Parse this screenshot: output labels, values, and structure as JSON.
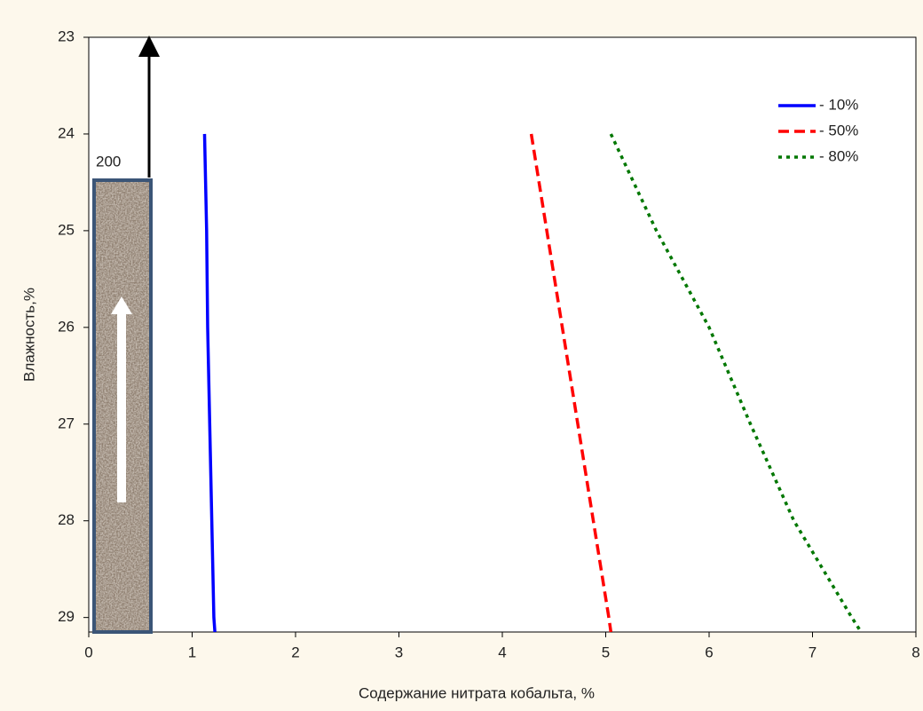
{
  "chart_data": {
    "type": "line",
    "x_label": "Содержание нитрата кобальта, %",
    "y_label": "Влажность,%",
    "annotation": "200",
    "xlim": [
      0,
      8
    ],
    "xticks": [
      0,
      1,
      2,
      3,
      4,
      5,
      6,
      7,
      8
    ],
    "ylim": [
      23,
      29.15
    ],
    "yticks": [
      23,
      24,
      25,
      26,
      27,
      28,
      29
    ],
    "y_inverted": true,
    "legend": "upper right",
    "series": [
      {
        "name": "- 10%",
        "color": "#0000ff",
        "dash": "solid",
        "x": [
          1.12,
          1.14,
          1.15,
          1.17,
          1.19,
          1.21,
          1.22
        ],
        "y": [
          24,
          25,
          26,
          27,
          28,
          29,
          29.15
        ]
      },
      {
        "name": "- 50%",
        "color": "#ff0000",
        "dash": "dashed",
        "x": [
          4.28,
          4.43,
          4.58,
          4.73,
          4.88,
          5.03,
          5.05
        ],
        "y": [
          24,
          25,
          26,
          27,
          28,
          29,
          29.15
        ]
      },
      {
        "name": "- 80%",
        "color": "#007700",
        "dash": "dotted",
        "x": [
          5.05,
          5.49,
          6.0,
          6.4,
          6.82,
          7.38,
          7.47
        ],
        "y": [
          24,
          25,
          26,
          27,
          28,
          29,
          29.15
        ]
      }
    ]
  }
}
